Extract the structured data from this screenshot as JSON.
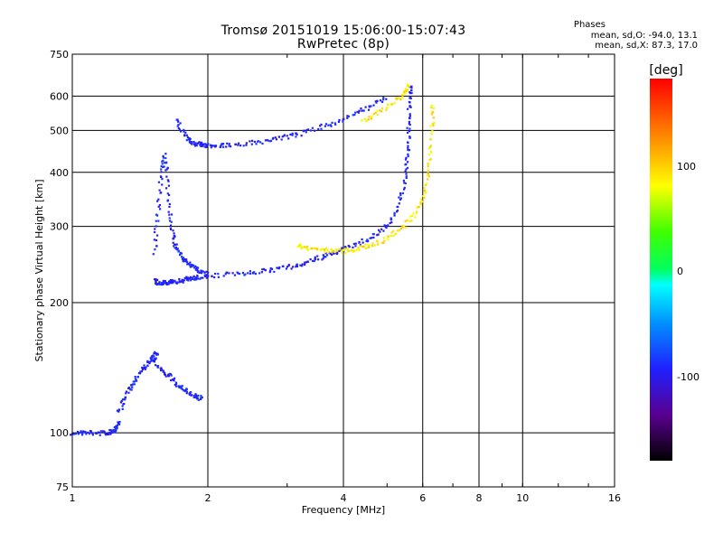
{
  "header": {
    "title_line1": "Tromsø 20151019 15:06:00-15:07:43",
    "title_line2": "RwPretec (8p)",
    "stats_title": "Phases",
    "stats_line1": "mean, sd,O:  -94.0, 13.1",
    "stats_line2": "mean, sd,X:  87.3, 17.0"
  },
  "colorbar": {
    "unit_label": "[deg]",
    "ticks": [
      "100",
      "0",
      "-100"
    ]
  },
  "chart_data": {
    "type": "scatter",
    "title": "Tromsø 20151019 15:06:00-15:07:43",
    "subtitle": "RwPretec (8p)",
    "xlabel": "Frequency [MHz]",
    "ylabel": "Stationary phase Virtual Height [km]",
    "x_scale": "log",
    "y_scale": "log",
    "xlim": [
      1,
      16
    ],
    "ylim": [
      75,
      750
    ],
    "x_ticks": [
      1,
      2,
      4,
      6,
      8,
      10,
      16
    ],
    "y_ticks": [
      75,
      100,
      200,
      300,
      400,
      500,
      600,
      750
    ],
    "color_scale": {
      "label": "[deg]",
      "min": -180,
      "max": 180,
      "ticks": [
        100,
        0,
        -100
      ]
    },
    "series": [
      {
        "name": "O",
        "phase_mean": -94.0,
        "phase_sd": 13.1,
        "traces": [
          {
            "x": [
              1.0,
              1.05,
              1.1,
              1.15,
              1.2,
              1.23,
              1.25,
              1.27
            ],
            "y": [
              100,
              100,
              100,
              100,
              100,
              101,
              103,
              106
            ]
          },
          {
            "x": [
              1.27,
              1.3,
              1.33,
              1.36,
              1.4,
              1.44,
              1.48,
              1.52,
              1.55
            ],
            "y": [
              112,
              118,
              124,
              130,
              136,
              141,
              146,
              150,
              154
            ]
          },
          {
            "x": [
              1.52,
              1.55,
              1.58,
              1.62,
              1.66,
              1.7,
              1.75,
              1.8,
              1.85,
              1.9,
              2.0,
              2.2,
              2.4,
              2.6,
              2.8,
              3.0,
              3.2,
              3.4,
              3.6,
              3.8,
              4.0,
              4.3,
              4.6,
              4.9,
              5.1,
              5.3,
              5.45,
              5.52,
              5.56,
              5.58,
              5.6,
              5.62,
              5.63
            ],
            "y": [
              225,
              223,
              222,
              222,
              223,
              224,
              225,
              227,
              228,
              229,
              230,
              232,
              234,
              236,
              238,
              241,
              245,
              250,
              255,
              260,
              266,
              273,
              283,
              295,
              310,
              335,
              370,
              410,
              450,
              500,
              550,
              600,
              640
            ]
          },
          {
            "x": [
              1.52,
              1.54,
              1.56,
              1.58,
              1.6,
              1.62,
              1.64,
              1.66,
              1.68,
              1.7,
              1.75,
              1.8,
              1.85,
              1.9,
              1.95,
              2.0
            ],
            "y": [
              260,
              300,
              350,
              400,
              440,
              400,
              340,
              300,
              280,
              265,
              255,
              248,
              243,
              238,
              235,
              232
            ]
          },
          {
            "x": [
              1.7,
              1.75,
              1.8,
              1.85,
              1.9,
              1.95,
              2.0,
              2.1,
              2.2,
              2.4,
              2.6,
              2.8,
              3.0,
              3.2,
              3.5,
              3.8,
              4.1,
              4.4,
              4.7,
              5.0
            ],
            "y": [
              530,
              500,
              475,
              468,
              465,
              463,
              462,
              462,
              463,
              466,
              470,
              476,
              483,
              492,
              505,
              520,
              537,
              556,
              575,
              595
            ]
          },
          {
            "x": [
              1.5,
              1.55,
              1.6,
              1.65,
              1.7,
              1.75,
              1.8,
              1.85,
              1.9,
              1.95
            ],
            "y": [
              150,
              142,
              138,
              135,
              130,
              127,
              125,
              122,
              121,
              120
            ]
          }
        ]
      },
      {
        "name": "X",
        "phase_mean": 87.3,
        "phase_sd": 17.0,
        "traces": [
          {
            "x": [
              3.15,
              3.3,
              3.5,
              3.7,
              3.9,
              4.1,
              4.3,
              4.5,
              4.8,
              5.1,
              5.4,
              5.7,
              5.95,
              6.1,
              6.2,
              6.25,
              6.3,
              6.33
            ],
            "y": [
              270,
              268,
              266,
              264,
              263,
              264,
              266,
              270,
              276,
              285,
              298,
              315,
              340,
              370,
              410,
              460,
              520,
              580
            ]
          },
          {
            "x": [
              4.4,
              4.7,
              5.0,
              5.3,
              5.5,
              5.6
            ],
            "y": [
              525,
              545,
              565,
              590,
              615,
              640
            ]
          }
        ]
      }
    ]
  }
}
